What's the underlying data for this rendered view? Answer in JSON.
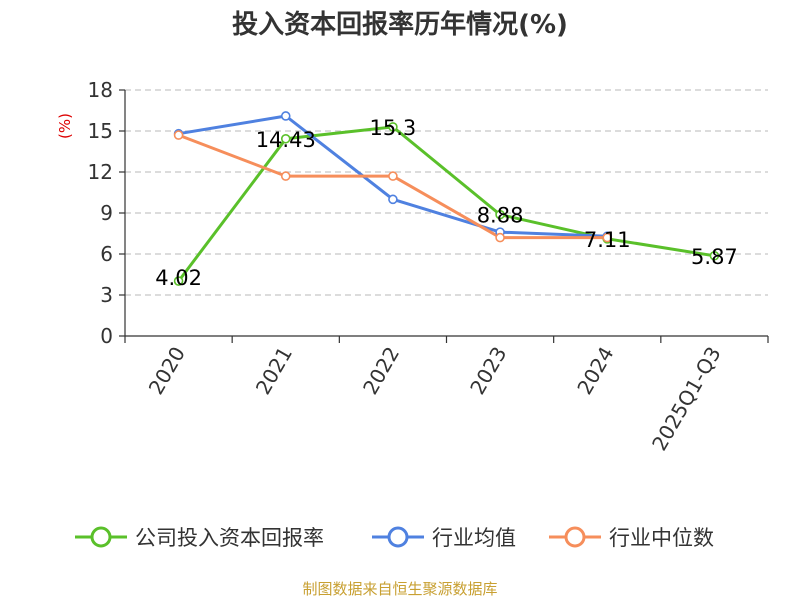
{
  "page": {
    "title": "投入资本回报率历年情况(%)",
    "source": "制图数据来自恒生聚源数据库"
  },
  "chart_data": {
    "type": "line",
    "title": "投入资本回报率历年情况(%)",
    "ylabel": "(%)",
    "xlabel": "",
    "categories": [
      "2020",
      "2021",
      "2022",
      "2023",
      "2024",
      "2025Q1-Q3"
    ],
    "ylim": [
      0,
      18
    ],
    "yticks": [
      0,
      3,
      6,
      9,
      12,
      15,
      18
    ],
    "grid": true,
    "legend_position": "bottom",
    "series": [
      {
        "name": "公司投入资本回报率",
        "color": "#5ac02a",
        "show_labels": true,
        "values": [
          4.02,
          14.43,
          15.3,
          8.88,
          7.11,
          5.87
        ]
      },
      {
        "name": "行业均值",
        "color": "#4f81e0",
        "show_labels": false,
        "values": [
          14.8,
          16.1,
          10.0,
          7.6,
          7.3,
          null
        ]
      },
      {
        "name": "行业中位数",
        "color": "#f68e5b",
        "show_labels": false,
        "values": [
          14.7,
          11.7,
          11.7,
          7.2,
          7.2,
          null
        ]
      }
    ]
  }
}
